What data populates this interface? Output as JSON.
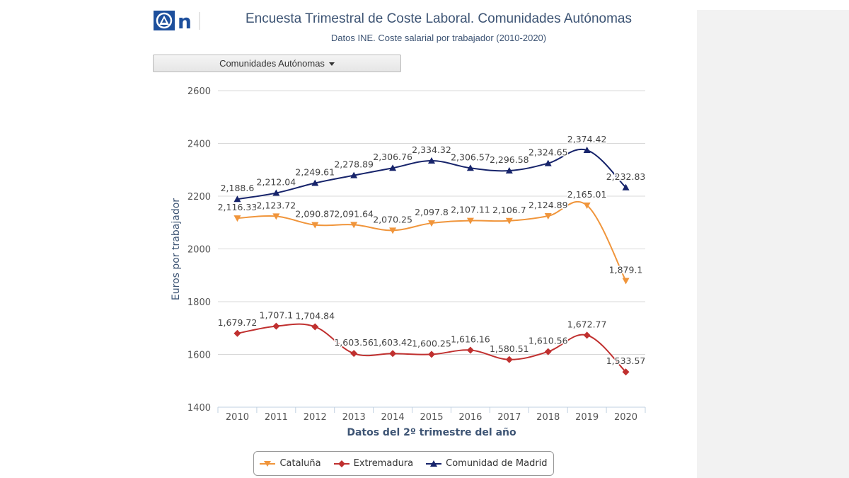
{
  "header": {
    "title": "Encuesta Trimestral de Coste Laboral. Comunidades Autónomas",
    "subtitle": "Datos INE. Coste salarial por trabajador (2010-2020)",
    "logo_letter": "n"
  },
  "controls": {
    "dropdown_label": "Comunidades Autónomas"
  },
  "colors": {
    "cataluna": "#f0953b",
    "extremadura": "#c0302f",
    "madrid": "#17246b",
    "axis_title": "#3d5474",
    "brand": "#1d4f9c"
  },
  "chart_data": {
    "type": "line",
    "xlabel": "Datos del 2º trimestre del año",
    "ylabel": "Euros por trabajador",
    "ylim": [
      1400,
      2600
    ],
    "yticks": [
      1400,
      1600,
      1800,
      2000,
      2200,
      2400,
      2600
    ],
    "grid": true,
    "legend_position": "bottom",
    "categories": [
      "2010",
      "2011",
      "2012",
      "2013",
      "2014",
      "2015",
      "2016",
      "2017",
      "2018",
      "2019",
      "2020"
    ],
    "series": [
      {
        "name": "Cataluña",
        "marker": "triangle-down",
        "values": [
          2116.33,
          2123.72,
          2090.87,
          2091.64,
          2070.25,
          2097.8,
          2107.11,
          2106.7,
          2124.89,
          2165.01,
          1879.1
        ],
        "labels": [
          "2,116.33",
          "2,123.72",
          "2,090.87",
          "2,091.64",
          "2,070.25",
          "2,097.8",
          "2,107.11",
          "2,106.7",
          "2,124.89",
          "2,165.01",
          "1,879.1"
        ]
      },
      {
        "name": "Extremadura",
        "marker": "diamond",
        "values": [
          1679.72,
          1707.1,
          1704.84,
          1603.56,
          1603.42,
          1600.25,
          1616.16,
          1580.51,
          1610.56,
          1672.77,
          1533.57
        ],
        "labels": [
          "1,679.72",
          "1,707.1",
          "1,704.84",
          "1,603.56",
          "1,603.42",
          "1,600.25",
          "1,616.16",
          "1,580.51",
          "1,610.56",
          "1,672.77",
          "1,533.57"
        ]
      },
      {
        "name": "Comunidad de Madrid",
        "marker": "triangle-up",
        "values": [
          2188.6,
          2212.04,
          2249.61,
          2278.89,
          2306.76,
          2334.32,
          2306.57,
          2296.58,
          2324.65,
          2374.42,
          2232.83
        ],
        "labels": [
          "2,188.6",
          "2,212.04",
          "2,249.61",
          "2,278.89",
          "2,306.76",
          "2,334.32",
          "2,306.57",
          "2,296.58",
          "2,324.65",
          "2,374.42",
          "2,232.83"
        ]
      }
    ]
  }
}
